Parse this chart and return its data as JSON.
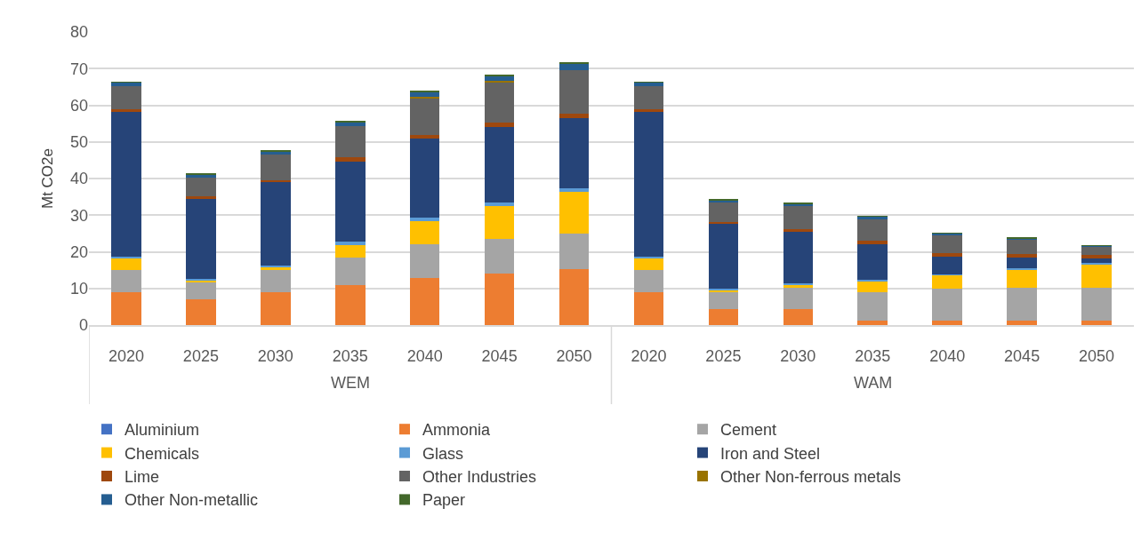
{
  "chart_data": {
    "type": "bar",
    "stacked": true,
    "ylabel": "Mt CO2e",
    "categories": [
      "2020",
      "2025",
      "2030",
      "2035",
      "2040",
      "2045",
      "2050",
      "2020",
      "2025",
      "2030",
      "2035",
      "2040",
      "2045",
      "2050"
    ],
    "annotations": [
      "WEM",
      "WAM"
    ],
    "ylim": [
      0,
      80
    ],
    "yticks": [
      0,
      10,
      20,
      30,
      40,
      50,
      60,
      70,
      80
    ],
    "grid": "y",
    "legend": "bottom",
    "series": [
      {
        "name": "Aluminium",
        "color": "#4472c4",
        "values": [
          0,
          0,
          0,
          0,
          0,
          0,
          0,
          0,
          0,
          0,
          0,
          0,
          0,
          0
        ]
      },
      {
        "name": "Ammonia",
        "color": "#ed7d31",
        "values": [
          9.0,
          7.0,
          9.0,
          10.9,
          12.8,
          14.1,
          15.2,
          9.0,
          4.4,
          4.4,
          1.1,
          1.1,
          1.1,
          1.1
        ]
      },
      {
        "name": "Cement",
        "color": "#a5a5a5",
        "values": [
          6.0,
          4.7,
          6.0,
          7.5,
          9.2,
          9.5,
          9.8,
          6.0,
          4.6,
          5.9,
          7.9,
          8.8,
          9.0,
          9.0
        ]
      },
      {
        "name": "Chemicals",
        "color": "#ffc000",
        "values": [
          3.2,
          0.6,
          0.8,
          3.5,
          6.4,
          8.9,
          11.3,
          3.2,
          0.5,
          0.8,
          3.0,
          3.8,
          5.1,
          6.5
        ]
      },
      {
        "name": "Glass",
        "color": "#5b9bd5",
        "values": [
          0.5,
          0.3,
          0.5,
          0.8,
          0.9,
          1.0,
          1.0,
          0.5,
          0.4,
          0.3,
          0.3,
          0.2,
          0.3,
          0.3
        ]
      },
      {
        "name": "Iron and Steel",
        "color": "#264478",
        "values": [
          39.5,
          21.9,
          22.7,
          22.0,
          21.6,
          20.6,
          19.2,
          39.5,
          17.8,
          14.1,
          9.8,
          4.8,
          3.0,
          1.3
        ]
      },
      {
        "name": "Lime",
        "color": "#9e480e",
        "values": [
          0.8,
          0.6,
          0.5,
          1.1,
          1.1,
          1.2,
          1.2,
          0.8,
          0.5,
          0.8,
          0.9,
          0.9,
          0.8,
          0.9
        ]
      },
      {
        "name": "Other Industries",
        "color": "#636363",
        "values": [
          6.1,
          5.2,
          7.0,
          8.6,
          10.0,
          11.0,
          11.9,
          6.1,
          5.3,
          6.2,
          5.9,
          5.0,
          4.1,
          2.4
        ]
      },
      {
        "name": "Other Non-ferrous metals",
        "color": "#997300",
        "values": [
          0,
          0,
          0,
          0,
          0.3,
          0.4,
          0,
          0,
          0,
          0,
          0,
          0,
          0,
          0
        ]
      },
      {
        "name": "Other Non-metallic",
        "color": "#255e91",
        "values": [
          1.1,
          0.8,
          0.9,
          1.1,
          1.4,
          1.3,
          1.9,
          1.1,
          0.6,
          0.6,
          0.7,
          0.4,
          0.3,
          0.1
        ]
      },
      {
        "name": "Paper",
        "color": "#43682b",
        "values": [
          0.2,
          0.2,
          0.3,
          0.3,
          0.3,
          0.3,
          0.3,
          0.2,
          0.3,
          0.3,
          0.2,
          0.2,
          0.2,
          0.2
        ]
      }
    ]
  }
}
